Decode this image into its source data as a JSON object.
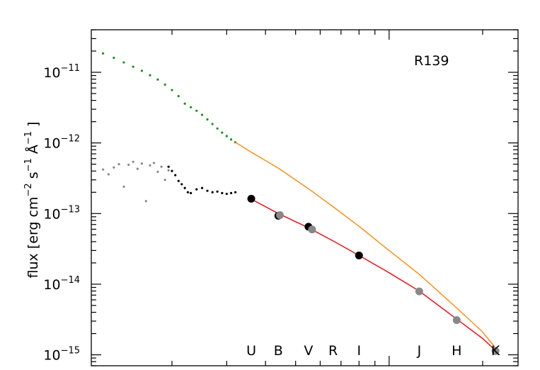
{
  "chart_data": {
    "type": "scatter",
    "title": "",
    "annotation": "R139",
    "ylabel_parts": [
      "flux [erg cm",
      "s",
      "Å",
      "]"
    ],
    "ylabel_exponents": [
      "−2",
      "−1",
      "−1"
    ],
    "xlabel": "",
    "yscale": "log",
    "ylim": [
      7e-16,
      4e-11
    ],
    "xlim": [
      0.11,
      2.6
    ],
    "ytick_values": [
      1e-11,
      1e-12,
      1e-13,
      1e-14,
      1e-15
    ],
    "ytick_labels": [
      {
        "base": "10",
        "exp": "−11"
      },
      {
        "base": "10",
        "exp": "−12"
      },
      {
        "base": "10",
        "exp": "−13"
      },
      {
        "base": "10",
        "exp": "−14"
      },
      {
        "base": "10",
        "exp": "−15"
      }
    ],
    "band_labels": [
      {
        "label": "U",
        "x": 0.36
      },
      {
        "label": "B",
        "x": 0.44
      },
      {
        "label": "V",
        "x": 0.55
      },
      {
        "label": "R",
        "x": 0.66
      },
      {
        "label": "I",
        "x": 0.8
      },
      {
        "label": "J",
        "x": 1.25
      },
      {
        "label": "H",
        "x": 1.65
      },
      {
        "label": "K",
        "x": 2.2
      }
    ],
    "grid": false,
    "legend": "none",
    "series": [
      {
        "role": "iue-dereddened",
        "color": "#1f8a1f",
        "style": "points",
        "x": [
          0.12,
          0.13,
          0.14,
          0.15,
          0.16,
          0.17,
          0.18,
          0.19,
          0.2,
          0.21,
          0.22,
          0.23,
          0.24,
          0.25,
          0.26,
          0.27,
          0.28,
          0.29,
          0.3,
          0.31,
          0.32
        ],
        "y": [
          1.85e-11,
          1.6e-11,
          1.38e-11,
          1.2e-11,
          1.05e-11,
          9.1e-12,
          7.9e-12,
          6.7e-12,
          5.6e-12,
          4.6e-12,
          3.6e-12,
          3.2e-12,
          2.85e-12,
          2.5e-12,
          2.15e-12,
          1.85e-12,
          1.6e-12,
          1.4e-12,
          1.25e-12,
          1.12e-12,
          1.02e-12
        ]
      },
      {
        "role": "model-dereddened",
        "color": "#f5901e",
        "style": "line",
        "x": [
          0.32,
          0.36,
          0.44,
          0.55,
          0.66,
          0.8,
          1.0,
          1.25,
          1.65,
          2.0,
          2.2
        ],
        "y": [
          1.02e-12,
          7.4e-13,
          4.4e-13,
          2.25e-13,
          1.25e-13,
          6.6e-14,
          3e-14,
          1.38e-14,
          4.6e-15,
          2.1e-15,
          1.25e-15
        ]
      },
      {
        "role": "iue-observed-short",
        "color": "#888888",
        "style": "points",
        "x": [
          0.12,
          0.125,
          0.13,
          0.135,
          0.14,
          0.145,
          0.15,
          0.155,
          0.16,
          0.165,
          0.17,
          0.175,
          0.18,
          0.185,
          0.19,
          0.195
        ],
        "y": [
          4.2e-13,
          3.6e-13,
          4.5e-13,
          5e-13,
          2.4e-13,
          4.9e-13,
          5.4e-13,
          4.3e-13,
          5.1e-13,
          1.5e-13,
          4.8e-13,
          5.2e-13,
          3.9e-13,
          4.6e-13,
          3e-13,
          4.1e-13
        ]
      },
      {
        "role": "iue-observed-long",
        "color": "#000000",
        "style": "points",
        "x": [
          0.195,
          0.2,
          0.205,
          0.21,
          0.215,
          0.22,
          0.225,
          0.23,
          0.24,
          0.25,
          0.26,
          0.27,
          0.28,
          0.29,
          0.3,
          0.31,
          0.32
        ],
        "y": [
          4.6e-13,
          4e-13,
          3.5e-13,
          2.9e-13,
          2.6e-13,
          2.3e-13,
          2e-13,
          1.95e-13,
          2.2e-13,
          2.3e-13,
          2.1e-13,
          2e-13,
          2.05e-13,
          1.95e-13,
          1.9e-13,
          1.95e-13,
          2e-13
        ]
      },
      {
        "role": "model-observed",
        "color": "#e3141e",
        "style": "line",
        "x": [
          0.36,
          0.44,
          0.55,
          0.66,
          0.8,
          1.0,
          1.25,
          1.65,
          2.0,
          2.2
        ],
        "y": [
          1.6e-13,
          1e-13,
          6.3e-14,
          4.1e-14,
          2.55e-14,
          1.45e-14,
          8e-15,
          3.2e-15,
          1.7e-15,
          1.15e-15
        ]
      },
      {
        "role": "photometry-black",
        "color": "#000000",
        "style": "dots",
        "x": [
          0.36,
          0.44,
          0.55,
          0.8
        ],
        "y": [
          1.62e-13,
          9.3e-14,
          6.5e-14,
          2.55e-14
        ]
      },
      {
        "role": "photometry-grey",
        "color": "#888888",
        "style": "dots",
        "x": [
          0.445,
          0.565,
          1.25,
          1.65,
          2.2
        ],
        "y": [
          9.5e-14,
          5.95e-14,
          7.9e-15,
          3.1e-15,
          1.13e-15
        ]
      }
    ]
  }
}
